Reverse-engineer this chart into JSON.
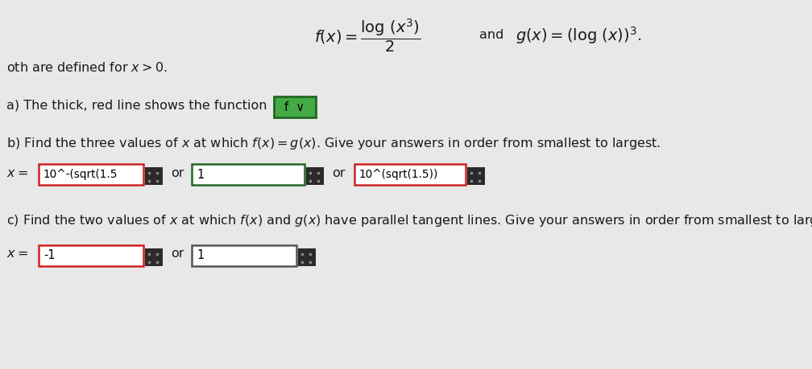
{
  "bg_color": "#e8e8e8",
  "formula_f": "$f(x) = \\dfrac{\\log\\,(x^3)}{2}$",
  "formula_and": "and",
  "formula_g": "$g(x) = (\\log\\,(x))^3.$",
  "line1": "oth are defined for $x > 0$.",
  "line_a": "a) The thick, red line shows the function",
  "dropdown_text": "f  ∨",
  "dropdown_bg": "#44aa44",
  "dropdown_border": "#226622",
  "line_b": "b) Find the three values of $x$ at which $f(x) = g(x)$. Give your answers in order from smallest to largest.",
  "x_eq": "$x =$",
  "b1_text": "10^-(sqrt(1.5",
  "b1_border": "#cc2222",
  "b2_text": "1",
  "b2_border": "#226622",
  "b3_text": "10^(sqrt(1.5))",
  "b3_border": "#cc2222",
  "or_text": "or",
  "line_c": "c) Find the two values of $x$ at which $f(x)$ and $g(x)$ have parallel tangent lines. Give your answers in order from smallest to largest.",
  "c1_text": "-1",
  "c1_border": "#cc2222",
  "c2_text": "1",
  "c2_border": "#555555",
  "dark_sq_color": "#2a2a2a",
  "text_color": "#1a1a1a",
  "fontsize_main": 11.5,
  "fontsize_formula": 14
}
